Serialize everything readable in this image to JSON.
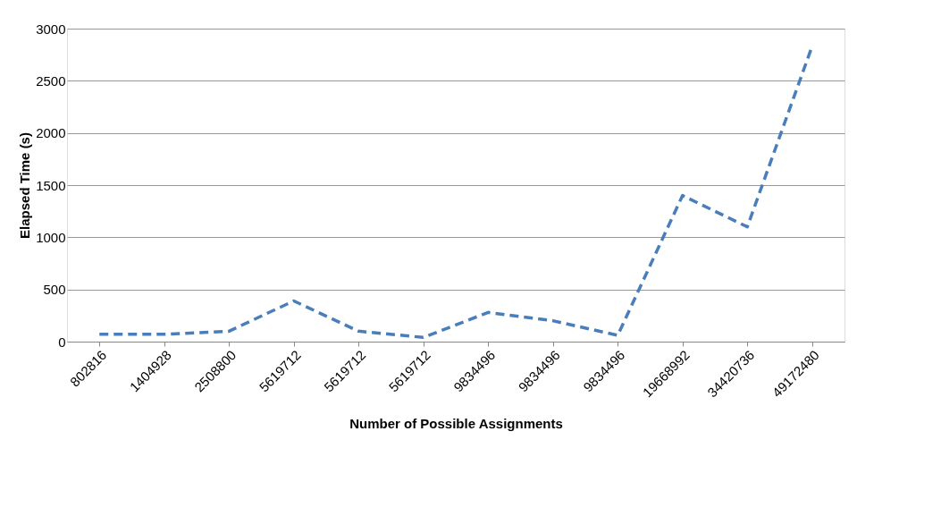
{
  "chart_data": {
    "type": "line",
    "xlabel": "Number of Possible Assignments",
    "ylabel": "Elapsed Time (s)",
    "categories": [
      "802816",
      "1404928",
      "2508800",
      "5619712",
      "5619712",
      "5619712",
      "9834496",
      "9834496",
      "9834496",
      "19668992",
      "34420736",
      "49172480"
    ],
    "series": [
      {
        "color": "#4a7ebb",
        "values": [
          70,
          70,
          100,
          390,
          100,
          40,
          280,
          200,
          60,
          1400,
          1100,
          2830
        ]
      }
    ],
    "ylim": [
      0,
      3000
    ],
    "yticks": [
      0,
      500,
      1000,
      1500,
      2000,
      2500,
      3000
    ],
    "grid": "y",
    "marker": "none",
    "line_style": "dashed"
  }
}
